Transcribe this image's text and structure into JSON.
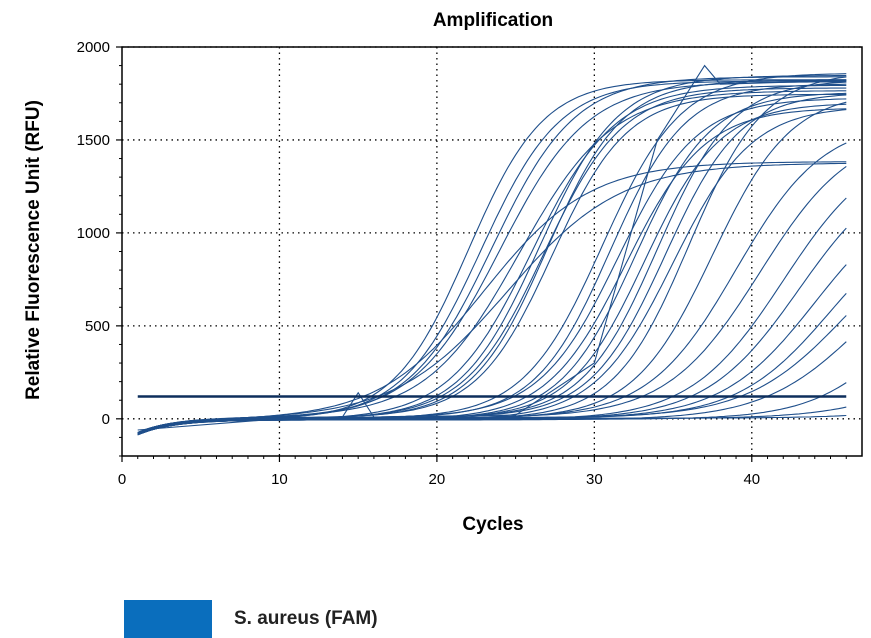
{
  "chart_data": {
    "type": "line",
    "title": "Amplification",
    "xlabel": "Cycles",
    "ylabel": "Relative Fluorescence Unit (RFU)",
    "xlim": [
      0,
      47
    ],
    "ylim": [
      -200,
      2000
    ],
    "xticks": [
      0,
      10,
      20,
      30,
      40
    ],
    "yticks": [
      0,
      500,
      1000,
      1500,
      2000
    ],
    "grid": true,
    "legend": [
      {
        "name": "S. aureus (FAM)",
        "color": "#0a6ebd"
      }
    ],
    "line_color": "#1f4f8b",
    "threshold": {
      "y": 120,
      "color": "#0d2e5c"
    },
    "cycles": [
      1,
      46
    ],
    "series": [
      {
        "mid": 22.0,
        "max": 1830,
        "k": 0.42
      },
      {
        "mid": 22.8,
        "max": 1820,
        "k": 0.4
      },
      {
        "mid": 23.5,
        "max": 1840,
        "k": 0.38
      },
      {
        "mid": 24.0,
        "max": 1810,
        "k": 0.36
      },
      {
        "mid": 25.2,
        "max": 1760,
        "k": 0.34
      },
      {
        "mid": 26.0,
        "max": 1800,
        "k": 0.38
      },
      {
        "mid": 26.5,
        "max": 1850,
        "k": 0.4
      },
      {
        "mid": 26.8,
        "max": 1780,
        "k": 0.4
      },
      {
        "mid": 27.0,
        "max": 1820,
        "k": 0.42
      },
      {
        "mid": 27.3,
        "max": 1740,
        "k": 0.42
      },
      {
        "mid": 23.0,
        "max": 1390,
        "k": 0.3
      },
      {
        "mid": 24.5,
        "max": 1380,
        "k": 0.28
      },
      {
        "mid": 30.5,
        "max": 1860,
        "k": 0.4
      },
      {
        "mid": 31.0,
        "max": 1800,
        "k": 0.42
      },
      {
        "mid": 31.5,
        "max": 1720,
        "k": 0.4
      },
      {
        "mid": 32.0,
        "max": 1680,
        "k": 0.4
      },
      {
        "mid": 32.6,
        "max": 1760,
        "k": 0.42
      },
      {
        "mid": 33.2,
        "max": 1700,
        "k": 0.42
      },
      {
        "mid": 34.0,
        "max": 1820,
        "k": 0.42
      },
      {
        "mid": 34.5,
        "max": 1750,
        "k": 0.42
      },
      {
        "mid": 35.0,
        "max": 1690,
        "k": 0.4
      },
      {
        "mid": 36.0,
        "max": 1870,
        "k": 0.42
      },
      {
        "mid": 37.5,
        "max": 1760,
        "k": 0.4
      },
      {
        "mid": 39.0,
        "max": 1600,
        "k": 0.36
      },
      {
        "mid": 40.5,
        "max": 1560,
        "k": 0.34
      },
      {
        "mid": 42.0,
        "max": 1500,
        "k": 0.34
      },
      {
        "mid": 43.0,
        "max": 1400,
        "k": 0.34
      },
      {
        "mid": 44.0,
        "max": 1250,
        "k": 0.34
      },
      {
        "mid": 45.0,
        "max": 1150,
        "k": 0.34
      },
      {
        "mid": 46.0,
        "max": 1100,
        "k": 0.32
      },
      {
        "mid": 47.0,
        "max": 1000,
        "k": 0.32
      },
      {
        "mid": 50.0,
        "max": 1000,
        "k": 0.35
      },
      {
        "mid": 55.0,
        "max": 1000,
        "k": 0.3
      },
      {
        "mid": 60.0,
        "max": 1000,
        "k": 0.3
      }
    ],
    "spike_series": [
      {
        "points": [
          [
            1,
            -60
          ],
          [
            10,
            0
          ],
          [
            14,
            10
          ],
          [
            15,
            140
          ],
          [
            16,
            10
          ],
          [
            25,
            20
          ],
          [
            30,
            300
          ],
          [
            34,
            1500
          ],
          [
            37,
            1900
          ],
          [
            38,
            1800
          ],
          [
            46,
            1820
          ]
        ]
      }
    ]
  }
}
